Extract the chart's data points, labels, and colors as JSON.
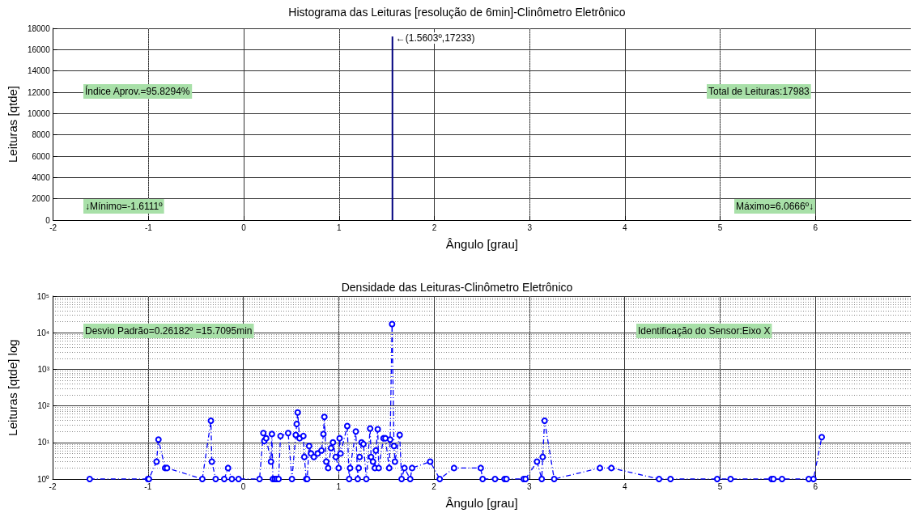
{
  "chart_data": [
    {
      "type": "bar",
      "title": "Histograma das Leituras [resolução de 6min]-Clinômetro Eletrônico",
      "xlabel": "Ângulo [grau]",
      "ylabel": "Leituras [qtde]",
      "x": [
        -1.6111,
        -1.0,
        -0.99,
        -0.91,
        -0.89,
        -0.82,
        -0.8,
        -0.43,
        -0.34,
        -0.33,
        -0.29,
        -0.2,
        -0.16,
        -0.12,
        -0.05,
        0.17,
        0.21,
        0.22,
        0.24,
        0.29,
        0.3,
        0.31,
        0.33,
        0.35,
        0.37,
        0.39,
        0.47,
        0.51,
        0.55,
        0.56,
        0.57,
        0.59,
        0.63,
        0.64,
        0.66,
        0.67,
        0.69,
        0.71,
        0.74,
        0.78,
        0.82,
        0.84,
        0.85,
        0.87,
        0.89,
        0.92,
        0.94,
        0.97,
        1.0,
        1.01,
        1.02,
        1.09,
        1.11,
        1.12,
        1.18,
        1.2,
        1.21,
        1.22,
        1.24,
        1.26,
        1.29,
        1.33,
        1.34,
        1.36,
        1.38,
        1.39,
        1.41,
        1.42,
        1.47,
        1.49,
        1.53,
        1.54,
        1.5603,
        1.58,
        1.59,
        1.64,
        1.66,
        1.69,
        1.75,
        1.77,
        1.96,
        2.06,
        2.21,
        2.49,
        2.51,
        2.64,
        2.74,
        2.76,
        2.94,
        2.96,
        3.08,
        3.13,
        3.14,
        3.16,
        3.26,
        3.74,
        3.86,
        4.36,
        4.48,
        4.97,
        5.11,
        5.54,
        5.56,
        5.65,
        5.93,
        5.98,
        6.0666
      ],
      "values": [
        0,
        0,
        0,
        0,
        0,
        0,
        0,
        0,
        0,
        0,
        0,
        0,
        0,
        0,
        0,
        0,
        0,
        0,
        0,
        0,
        0,
        0,
        0,
        0,
        0,
        0,
        0,
        0,
        0,
        0,
        0,
        0,
        0,
        0,
        0,
        0,
        0,
        0,
        0,
        0,
        0,
        0,
        0,
        0,
        0,
        0,
        0,
        0,
        0,
        0,
        0,
        0,
        0,
        0,
        0,
        0,
        0,
        0,
        0,
        0,
        0,
        0,
        0,
        0,
        0,
        0,
        0,
        0,
        0,
        0,
        0,
        0,
        17233,
        0,
        0,
        0,
        0,
        0,
        0,
        0,
        0,
        0,
        0,
        0,
        0,
        0,
        0,
        0,
        0,
        0,
        0,
        0,
        0,
        0,
        0,
        0,
        0,
        0,
        0,
        0,
        0,
        0,
        0,
        0,
        0,
        0,
        0
      ],
      "color": "#00007f",
      "xlim": [
        -2,
        7
      ],
      "xticks": [
        -2,
        -1,
        0,
        1,
        2,
        3,
        4,
        5,
        6
      ],
      "ylim": [
        0,
        18000
      ],
      "yticks": [
        0,
        2000,
        4000,
        6000,
        8000,
        10000,
        12000,
        14000,
        16000,
        18000
      ],
      "grid": true,
      "annotations": [
        "Índice Aprov.=95.8294%",
        "Total de Leituras:17983",
        "↓Mínimo=-1.6111º",
        "Máximo=6.0666º↓",
        {
          "text": "←(1.5603º,17233)",
          "x": 1.5603,
          "y": 17233
        }
      ]
    },
    {
      "type": "line",
      "title": "Densidade das Leituras-Clinômetro Eletrônico",
      "xlabel": "Ângulo [grau]",
      "ylabel": "Leituras [qtde] log",
      "x": [
        -1.6111,
        -1.0,
        -0.99,
        -0.91,
        -0.89,
        -0.82,
        -0.8,
        -0.43,
        -0.34,
        -0.33,
        -0.29,
        -0.2,
        -0.16,
        -0.12,
        -0.05,
        0.17,
        0.21,
        0.22,
        0.24,
        0.29,
        0.3,
        0.31,
        0.33,
        0.35,
        0.37,
        0.39,
        0.47,
        0.51,
        0.55,
        0.56,
        0.57,
        0.59,
        0.63,
        0.64,
        0.66,
        0.67,
        0.69,
        0.71,
        0.74,
        0.78,
        0.82,
        0.84,
        0.85,
        0.87,
        0.89,
        0.92,
        0.94,
        0.97,
        1.0,
        1.01,
        1.02,
        1.09,
        1.11,
        1.12,
        1.18,
        1.2,
        1.21,
        1.22,
        1.24,
        1.26,
        1.29,
        1.33,
        1.34,
        1.36,
        1.38,
        1.39,
        1.41,
        1.42,
        1.47,
        1.49,
        1.53,
        1.54,
        1.5603,
        1.58,
        1.59,
        1.64,
        1.66,
        1.69,
        1.75,
        1.77,
        1.96,
        2.06,
        2.21,
        2.49,
        2.51,
        2.64,
        2.74,
        2.76,
        2.94,
        2.96,
        3.08,
        3.13,
        3.14,
        3.16,
        3.26,
        3.74,
        3.86,
        4.36,
        4.48,
        4.97,
        5.11,
        5.54,
        5.56,
        5.65,
        5.93,
        5.98,
        6.0666
      ],
      "values": [
        1,
        1,
        1,
        3,
        12,
        2,
        2,
        1,
        39,
        3,
        1,
        1,
        2,
        1,
        1,
        1,
        18,
        11,
        13,
        3,
        17,
        1,
        1,
        1,
        1,
        15,
        18,
        1,
        16,
        32,
        66,
        13,
        15,
        4,
        1,
        1,
        8,
        5,
        4,
        5,
        6,
        17,
        50,
        3,
        2,
        7,
        10,
        4,
        2,
        13,
        5,
        28,
        1,
        2,
        20,
        1,
        2,
        4,
        10,
        9,
        1,
        24,
        4,
        3,
        2,
        6,
        23,
        2,
        13,
        13,
        2,
        12,
        17233,
        8,
        3,
        16,
        1,
        2,
        1,
        2,
        3,
        1,
        2,
        2,
        1,
        1,
        1,
        1,
        1,
        1,
        3,
        1,
        4,
        39,
        1,
        2,
        2,
        1,
        1,
        1,
        1,
        1,
        1,
        1,
        1,
        1,
        14
      ],
      "color": "#0000ff",
      "marker": "circle",
      "line_style": "dashed",
      "log": "y",
      "xlim": [
        -2,
        7
      ],
      "xticks": [
        -2,
        -1,
        0,
        1,
        2,
        3,
        4,
        5,
        6
      ],
      "ylim": [
        1,
        100000
      ],
      "yticks": [
        {
          "value": 1,
          "label": "10⁰"
        },
        {
          "value": 10,
          "label": "10¹"
        },
        {
          "value": 100,
          "label": "10²"
        },
        {
          "value": 1000,
          "label": "10³"
        },
        {
          "value": 10000,
          "label": "10⁴"
        },
        {
          "value": 100000,
          "label": "10⁵"
        }
      ],
      "grid": true,
      "annotations": [
        "Desvio Padrão=0.26182º =15.7095min",
        "Identificação do Sensor:Eixo X"
      ]
    }
  ]
}
